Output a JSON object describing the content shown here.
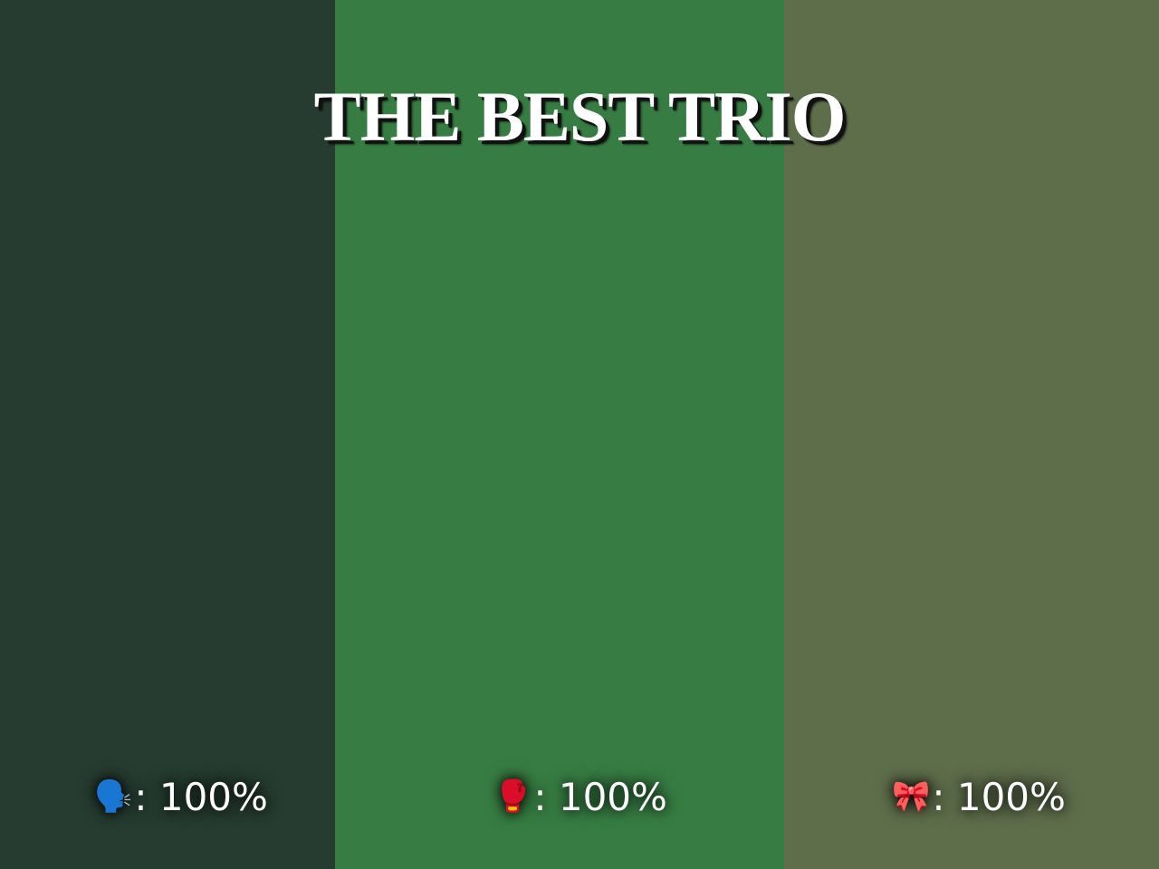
{
  "title": "THE BEST TRIO",
  "panels": [
    {
      "color": "#263c30",
      "icon": "speaking-head-icon",
      "emoji": "🗣️",
      "sep": ":",
      "value": "100%"
    },
    {
      "color": "#377d43",
      "icon": "boxing-glove-icon",
      "emoji": "🥊",
      "sep": ":",
      "value": "100%"
    },
    {
      "color": "#5e6e4b",
      "icon": "ribbon-bow-icon",
      "emoji": "🎀",
      "sep": ":",
      "value": "100%"
    }
  ]
}
